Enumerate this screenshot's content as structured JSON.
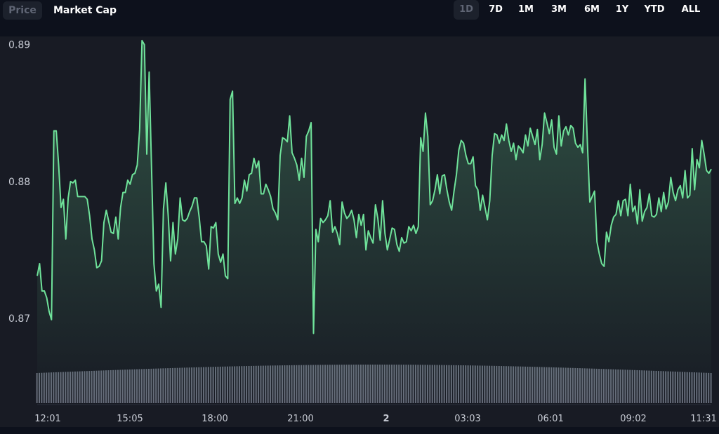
{
  "tabs": {
    "price": "Price",
    "market_cap": "Market Cap",
    "active": "Price"
  },
  "ranges": [
    "1D",
    "7D",
    "1M",
    "3M",
    "6M",
    "1Y",
    "YTD",
    "ALL"
  ],
  "active_range": "1D",
  "colors": {
    "line": "#6fe29a",
    "volume": "#747a89",
    "background": "#181b24",
    "axis_text": "#c6cad3"
  },
  "chart_data": {
    "type": "area",
    "y_ticks": [
      "0.89",
      "0.88",
      "0.87"
    ],
    "y_tick_values": [
      0.89,
      0.88,
      0.87
    ],
    "ylim": [
      0.8637,
      0.8906
    ],
    "x_ticks": [
      "12:01",
      "15:05",
      "18:00",
      "21:00",
      "2",
      "03:03",
      "06:01",
      "09:02",
      "11:31"
    ],
    "grid": false,
    "price": [
      0.8731,
      0.874,
      0.872,
      0.872,
      0.8715,
      0.8705,
      0.8699,
      0.8837,
      0.8837,
      0.8812,
      0.8781,
      0.8787,
      0.8758,
      0.8788,
      0.88,
      0.8799,
      0.8801,
      0.8789,
      0.8789,
      0.8789,
      0.8789,
      0.8787,
      0.8775,
      0.8758,
      0.875,
      0.8737,
      0.8738,
      0.8742,
      0.877,
      0.8779,
      0.8771,
      0.8763,
      0.8762,
      0.8774,
      0.8758,
      0.8781,
      0.8792,
      0.8792,
      0.8801,
      0.8798,
      0.8805,
      0.8806,
      0.8812,
      0.8838,
      0.8903,
      0.89,
      0.882,
      0.888,
      0.881,
      0.874,
      0.872,
      0.8725,
      0.8708,
      0.878,
      0.8799,
      0.8775,
      0.8742,
      0.877,
      0.8747,
      0.8758,
      0.8788,
      0.8772,
      0.8771,
      0.8773,
      0.8778,
      0.8782,
      0.8788,
      0.8788,
      0.8774,
      0.8756,
      0.8756,
      0.8753,
      0.8736,
      0.8767,
      0.8766,
      0.877,
      0.8747,
      0.8741,
      0.8747,
      0.8731,
      0.8729,
      0.886,
      0.8866,
      0.8784,
      0.8788,
      0.8784,
      0.8788,
      0.8801,
      0.8793,
      0.8805,
      0.8806,
      0.8817,
      0.881,
      0.8815,
      0.8791,
      0.8791,
      0.8798,
      0.8794,
      0.8789,
      0.878,
      0.8777,
      0.8772,
      0.8819,
      0.8832,
      0.8831,
      0.8829,
      0.8848,
      0.8821,
      0.8817,
      0.8812,
      0.8801,
      0.8817,
      0.8803,
      0.8833,
      0.8837,
      0.8843,
      0.8689,
      0.8765,
      0.8756,
      0.8773,
      0.877,
      0.8772,
      0.8775,
      0.8786,
      0.8763,
      0.8767,
      0.8762,
      0.8754,
      0.8785,
      0.8777,
      0.8773,
      0.8775,
      0.8779,
      0.8772,
      0.8759,
      0.8776,
      0.8768,
      0.8776,
      0.875,
      0.8764,
      0.8759,
      0.8755,
      0.8783,
      0.8773,
      0.8757,
      0.8786,
      0.8762,
      0.875,
      0.8758,
      0.8766,
      0.8765,
      0.8754,
      0.8749,
      0.8759,
      0.8755,
      0.8756,
      0.8767,
      0.8764,
      0.8768,
      0.8762,
      0.8767,
      0.8832,
      0.8822,
      0.885,
      0.8833,
      0.8783,
      0.8786,
      0.8794,
      0.8805,
      0.8791,
      0.8804,
      0.8805,
      0.8794,
      0.8785,
      0.8779,
      0.8793,
      0.8805,
      0.8823,
      0.883,
      0.8828,
      0.8819,
      0.8813,
      0.8813,
      0.8818,
      0.8797,
      0.8794,
      0.8779,
      0.879,
      0.8781,
      0.8772,
      0.8786,
      0.8819,
      0.8835,
      0.8834,
      0.8828,
      0.8834,
      0.883,
      0.8842,
      0.883,
      0.8822,
      0.8828,
      0.8816,
      0.8826,
      0.8824,
      0.8821,
      0.8834,
      0.8826,
      0.8839,
      0.8833,
      0.8827,
      0.8838,
      0.8816,
      0.8827,
      0.885,
      0.8843,
      0.8835,
      0.8845,
      0.8825,
      0.882,
      0.8848,
      0.8826,
      0.8837,
      0.884,
      0.8834,
      0.8841,
      0.8839,
      0.8828,
      0.8825,
      0.8827,
      0.8821,
      0.8875,
      0.8828,
      0.8785,
      0.8789,
      0.8793,
      0.8756,
      0.8747,
      0.874,
      0.8738,
      0.8763,
      0.8756,
      0.8768,
      0.8774,
      0.8776,
      0.8786,
      0.8775,
      0.8786,
      0.8787,
      0.8775,
      0.8798,
      0.8778,
      0.8782,
      0.8769,
      0.8794,
      0.8771,
      0.8778,
      0.8781,
      0.8791,
      0.8775,
      0.8774,
      0.8776,
      0.8788,
      0.8778,
      0.8792,
      0.878,
      0.8785,
      0.8803,
      0.8792,
      0.8786,
      0.8794,
      0.8797,
      0.8788,
      0.8808,
      0.8788,
      0.879,
      0.8824,
      0.8794,
      0.8816,
      0.881,
      0.883,
      0.882,
      0.8808,
      0.8806,
      0.8809
    ]
  }
}
